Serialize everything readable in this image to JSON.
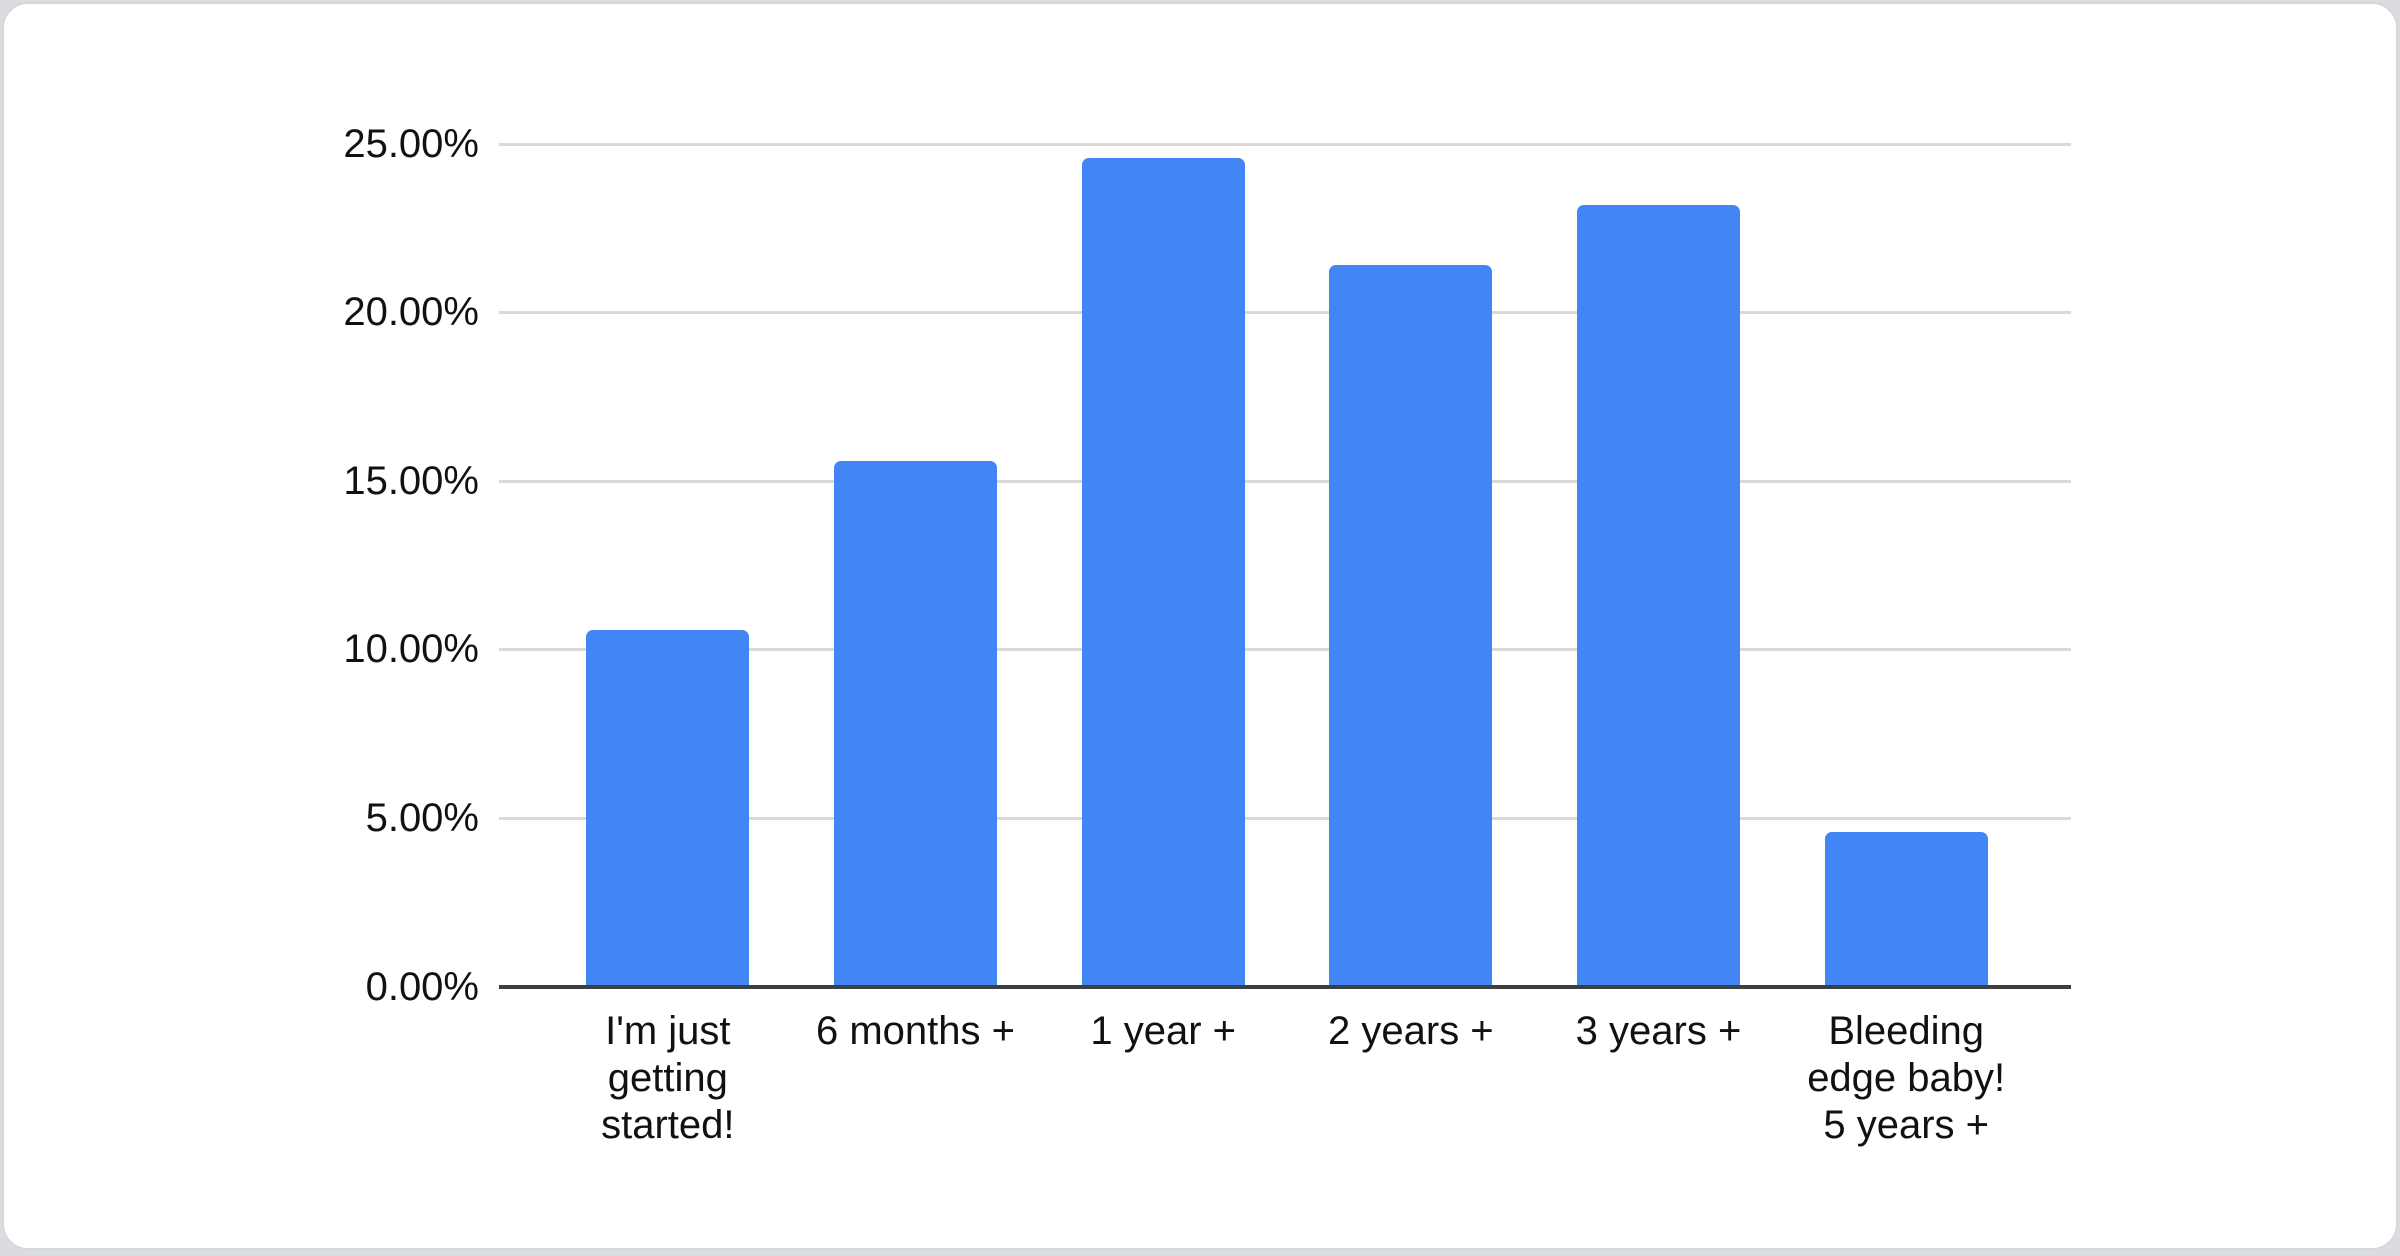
{
  "page": {
    "background_color": "#dadce0",
    "card_background_color": "#ffffff",
    "card_border_color": "#d5d8db"
  },
  "chart_data": {
    "type": "bar",
    "title": "",
    "xlabel": "",
    "ylabel": "",
    "categories": [
      "I'm just getting started!",
      "6 months +",
      "1 year +",
      "2 years +",
      "3 years +",
      "Bleeding edge baby! 5 years +"
    ],
    "category_lines": [
      [
        "I'm just",
        "getting",
        "started!"
      ],
      [
        "6 months +"
      ],
      [
        "1 year +"
      ],
      [
        "2 years +"
      ],
      [
        "3 years +"
      ],
      [
        "Bleeding",
        "edge baby!",
        "5 years +"
      ]
    ],
    "values": [
      10.6,
      15.6,
      24.6,
      21.4,
      23.2,
      4.6
    ],
    "unit": "%",
    "ylim": [
      0,
      25
    ],
    "ytick_step": 5,
    "ytick_labels": [
      "0.00%",
      "5.00%",
      "10.00%",
      "15.00%",
      "20.00%",
      "25.00%"
    ],
    "grid": true,
    "legend_position": "none",
    "bar_color": "#4285f4",
    "gridline_color": "#d9d9d9",
    "axis_line_color": "#3b3e42",
    "label_color": "#111111"
  }
}
